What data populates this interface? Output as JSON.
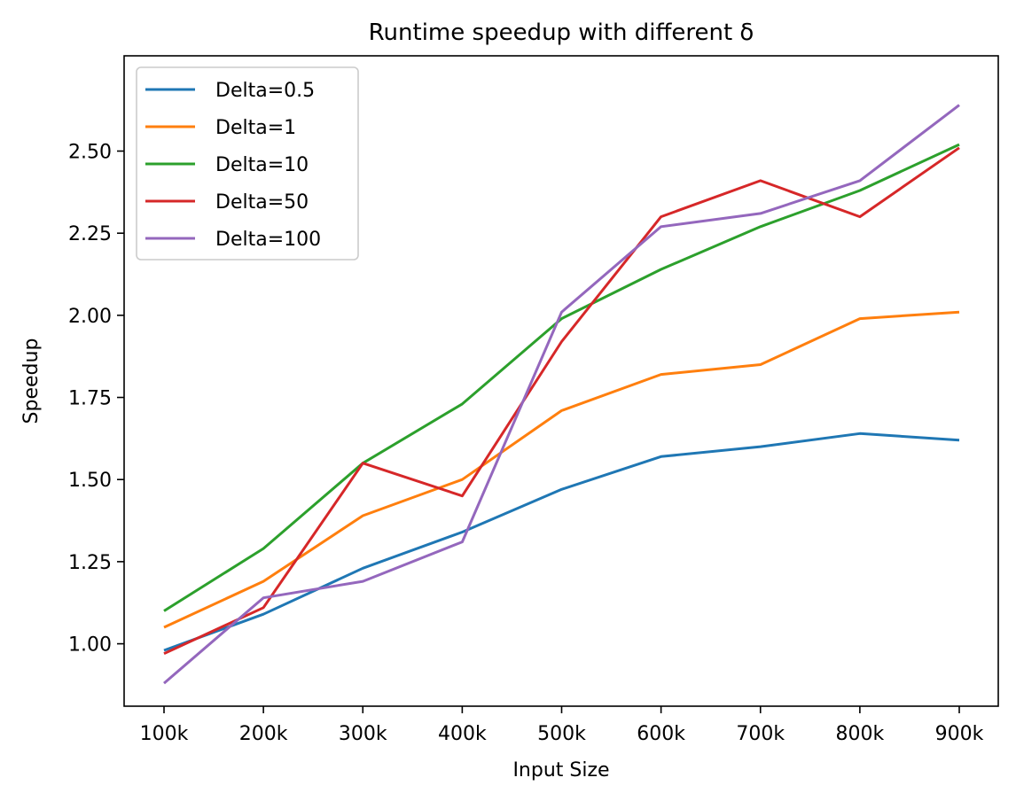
{
  "chart_data": {
    "type": "line",
    "title": "Runtime speedup with different δ",
    "xlabel": "Input Size",
    "ylabel": "Speedup",
    "categories": [
      "100k",
      "200k",
      "300k",
      "400k",
      "500k",
      "600k",
      "700k",
      "800k",
      "900k"
    ],
    "ylim": [
      0.81,
      2.79
    ],
    "yticks": [
      "1.00",
      "1.25",
      "1.50",
      "1.75",
      "2.00",
      "2.25",
      "2.50"
    ],
    "grid": false,
    "legend_position": "upper left",
    "series": [
      {
        "name": "Delta=0.5",
        "color": "#1f77b4",
        "values": [
          0.98,
          1.09,
          1.23,
          1.34,
          1.47,
          1.57,
          1.6,
          1.64,
          1.62
        ]
      },
      {
        "name": "Delta=1",
        "color": "#ff7f0e",
        "values": [
          1.05,
          1.19,
          1.39,
          1.5,
          1.71,
          1.82,
          1.85,
          1.99,
          2.01
        ]
      },
      {
        "name": "Delta=10",
        "color": "#2ca02c",
        "values": [
          1.1,
          1.29,
          1.55,
          1.73,
          1.99,
          2.14,
          2.27,
          2.38,
          2.52
        ]
      },
      {
        "name": "Delta=50",
        "color": "#d62728",
        "values": [
          0.97,
          1.11,
          1.55,
          1.45,
          1.92,
          2.3,
          2.41,
          2.3,
          2.51
        ]
      },
      {
        "name": "Delta=100",
        "color": "#9467bd",
        "values": [
          0.88,
          1.14,
          1.19,
          1.31,
          2.01,
          2.27,
          2.31,
          2.41,
          2.64
        ]
      }
    ]
  }
}
